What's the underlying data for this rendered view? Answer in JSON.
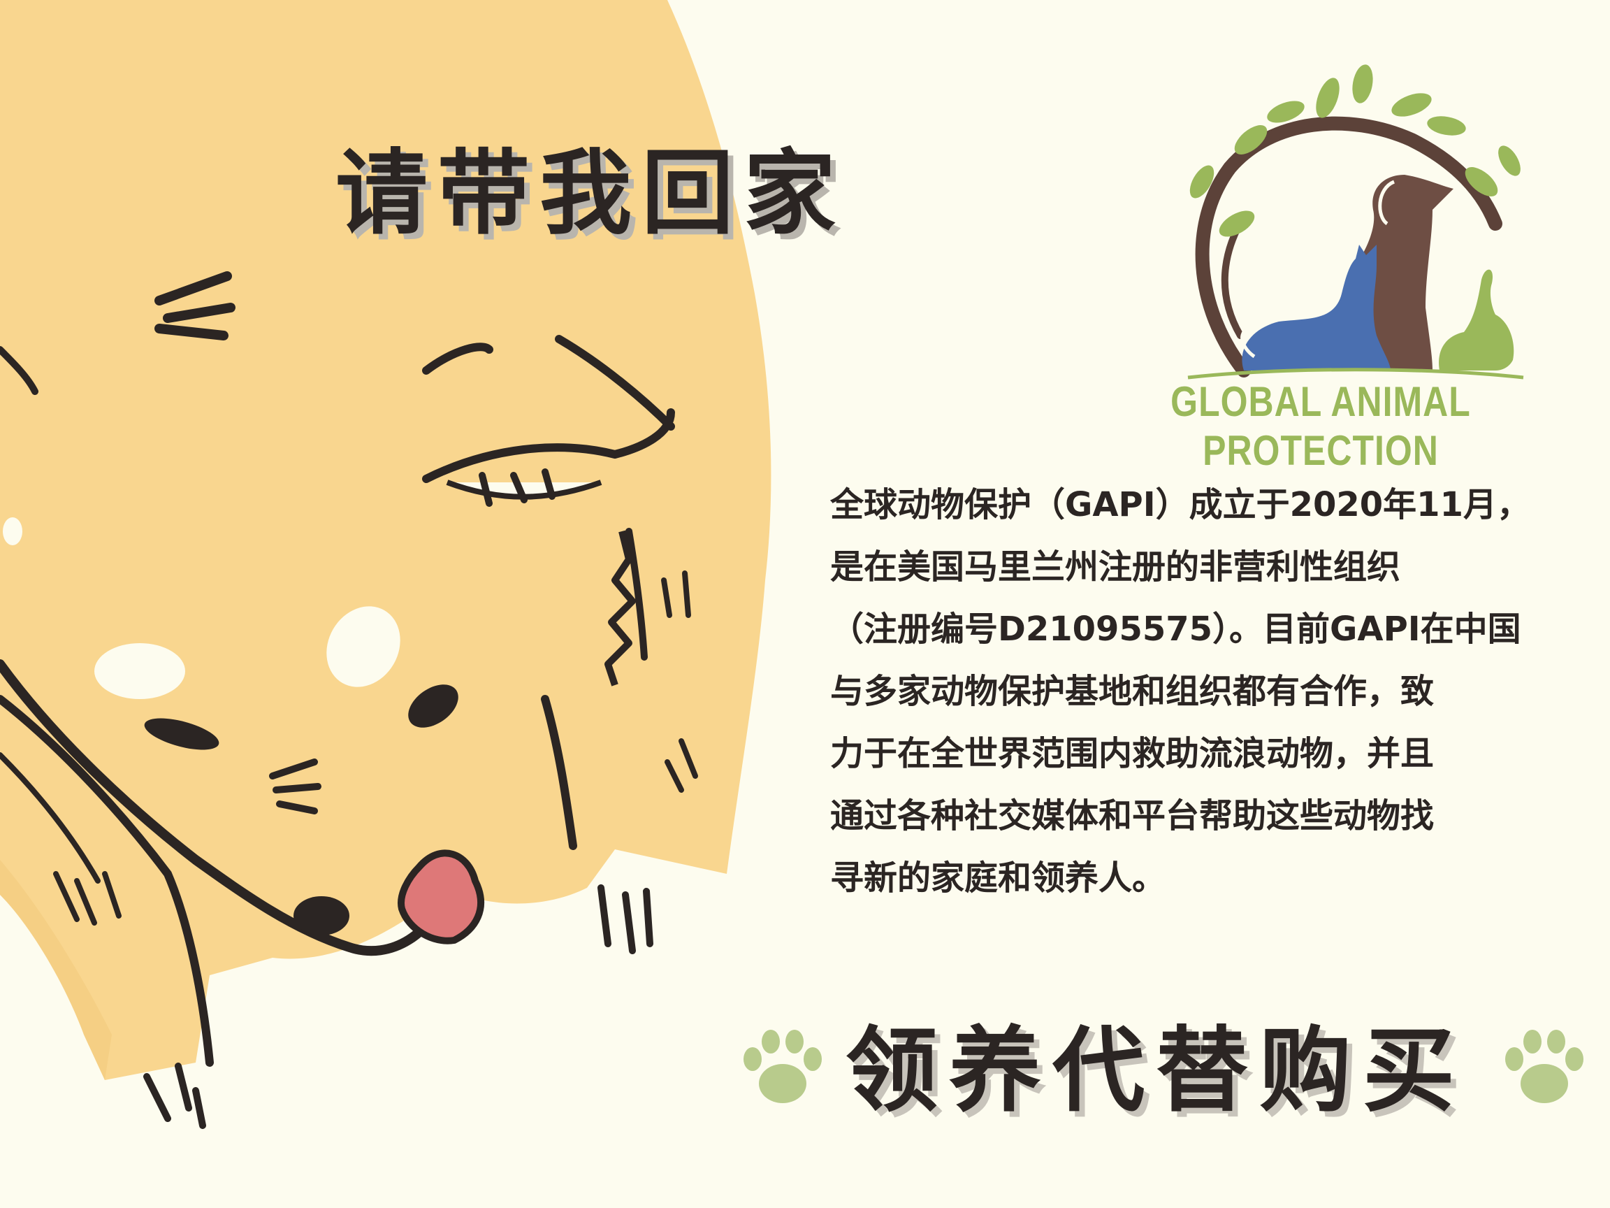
{
  "headline": "请带我回家",
  "organization": {
    "name": "GLOBAL ANIMAL PROTECTION",
    "logo_icon": "tree-dog-cat-rabbit-logo",
    "colors": {
      "tree": "#5c4239",
      "leaves": "#9ab85a",
      "dog": "#6e4e44",
      "cat": "#4a6fb0",
      "rabbit": "#9ab85a"
    }
  },
  "about_lines": [
    "全球动物保护（GAPI）成立于2020年11月，",
    "是在美国马里兰州注册的非营利性组织",
    "（注册编号D21095575）。目前GAPI在中国",
    "与多家动物保护基地和组织都有合作，致",
    "力于在全世界范围内救助流浪动物，并且",
    "通过各种社交媒体和平台帮助这些动物找",
    "寻新的家庭和领养人。"
  ],
  "slogan": "领养代替购买",
  "colors": {
    "background": "#fdfcef",
    "dog_fur": "#f9d68f",
    "ink": "#2b2523",
    "tongue": "#de7878",
    "paw": "#b8cb8c"
  },
  "icons": [
    "dog-illustration",
    "paw-print-icon"
  ]
}
